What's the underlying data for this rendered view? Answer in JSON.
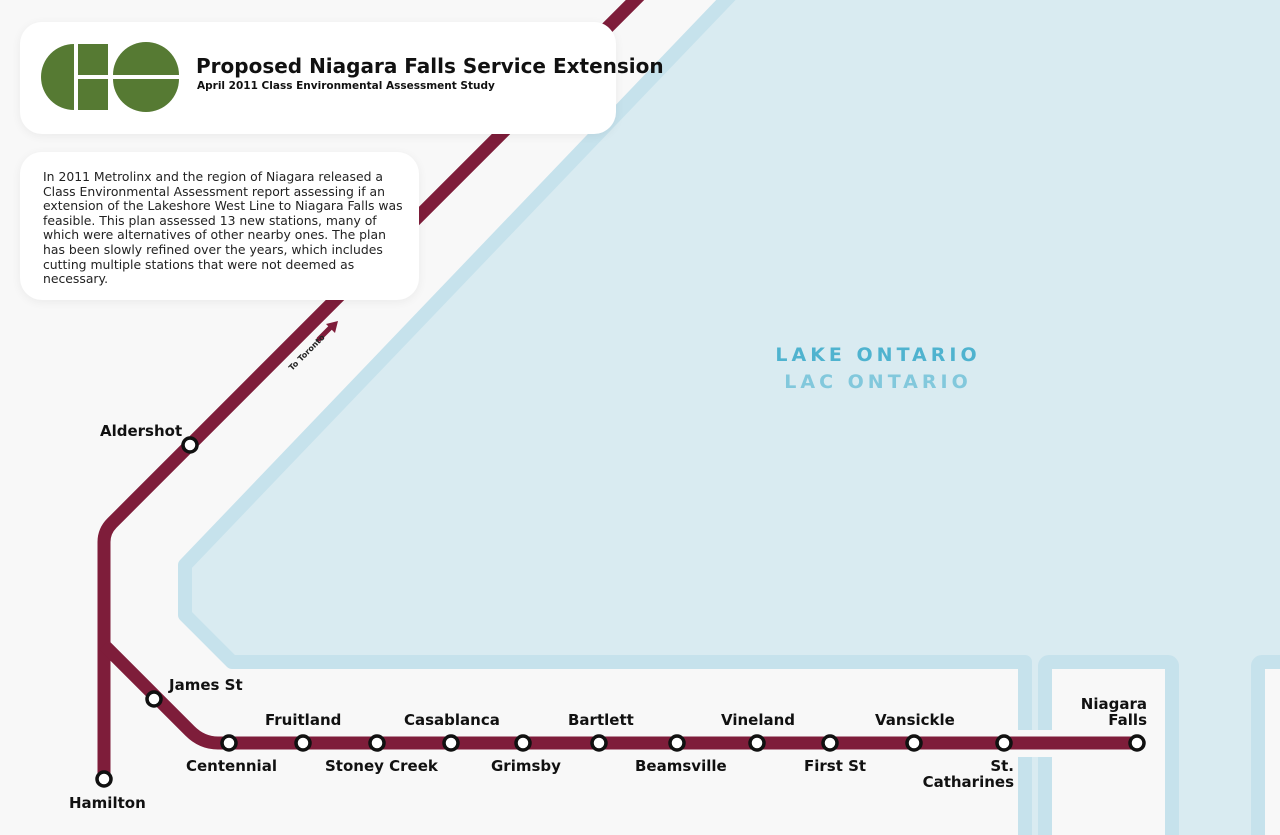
{
  "header": {
    "logo": "GO",
    "title": "Proposed Niagara Falls Service Extension",
    "subtitle": "April 2011 Class Environmental Assessment Study"
  },
  "description": "In 2011 Metrolinx and the region of Niagara released a Class Environmental Assessment report assessing if an extension of the Lakeshore West Line to Niagara Falls was feasible. This plan assessed 13 new stations, many of which were alternatives of other nearby ones. The plan has been slowly refined over the years, which includes cutting multiple stations that were not deemed as necessary.",
  "map": {
    "direction_label": "To Toronto",
    "lake_name_en": "LAKE ONTARIO",
    "lake_name_fr": "LAC ONTARIO",
    "colors": {
      "line": "#7e1d3a",
      "lake": "#d9ebf1",
      "shore": "#c6e2ec",
      "land": "#f8f8f8",
      "logo": "#567a33",
      "lake_text": "#4fb3cf"
    },
    "stations": [
      {
        "name": "Aldershot"
      },
      {
        "name": "Hamilton"
      },
      {
        "name": "James St"
      },
      {
        "name": "Centennial"
      },
      {
        "name": "Fruitland"
      },
      {
        "name": "Stoney Creek"
      },
      {
        "name": "Casablanca"
      },
      {
        "name": "Grimsby"
      },
      {
        "name": "Bartlett"
      },
      {
        "name": "Beamsville"
      },
      {
        "name": "Vineland"
      },
      {
        "name": "First St"
      },
      {
        "name": "Vansickle"
      },
      {
        "name": "St. Catharines"
      },
      {
        "name": "Niagara Falls"
      }
    ]
  }
}
